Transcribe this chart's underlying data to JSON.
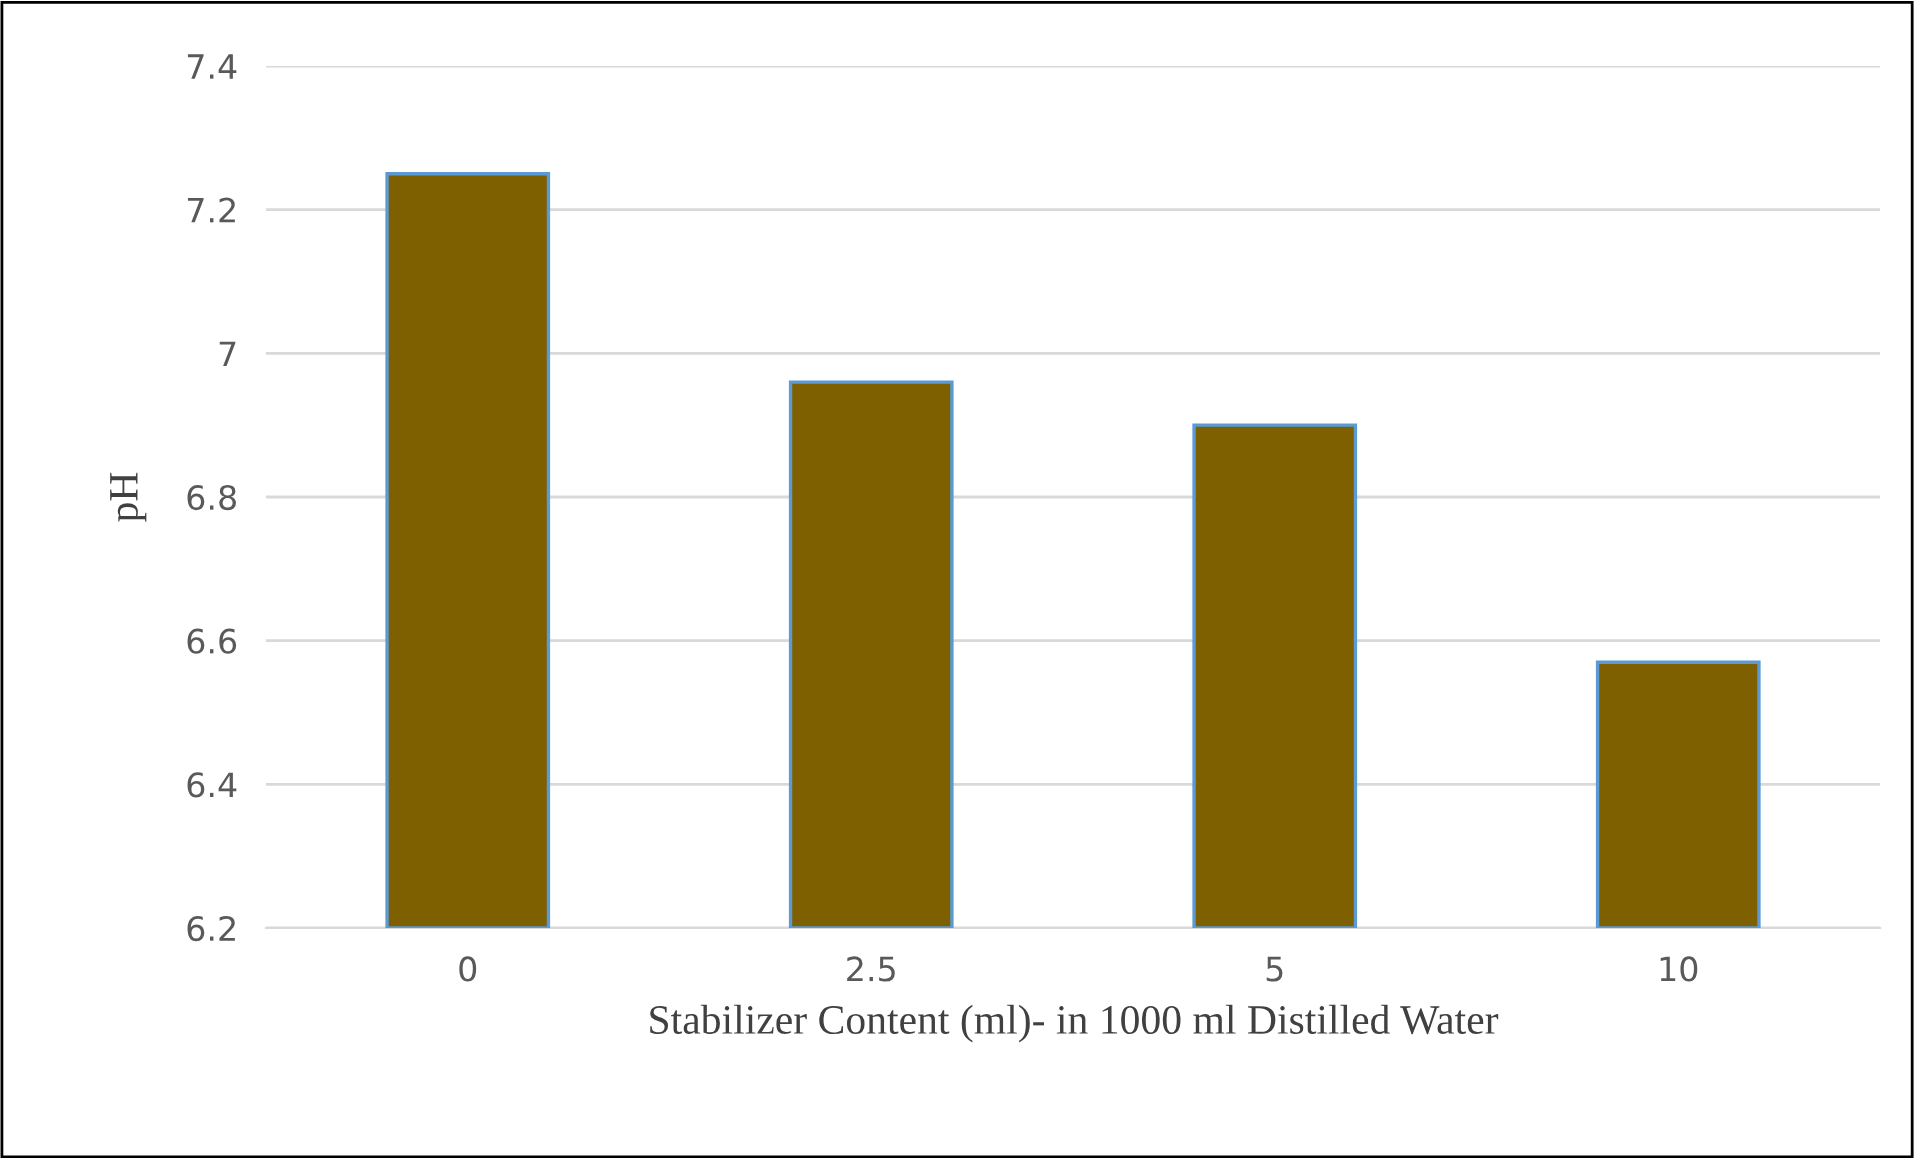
{
  "chart_data": {
    "type": "bar",
    "xlabel": "Stabilizer Content (ml)- in 1000 ml Distilled Water",
    "ylabel": "pH",
    "categories": [
      "0",
      "2.5",
      "5",
      "10"
    ],
    "series": [
      {
        "color": "#7f6000",
        "values": [
          7.25,
          6.96,
          6.9,
          6.57
        ]
      }
    ],
    "ylim": [
      6.2,
      7.4
    ],
    "yticks": [
      6.2,
      6.4,
      6.6,
      6.8,
      7,
      7.2,
      7.4
    ],
    "grid": "y",
    "legend": false
  }
}
